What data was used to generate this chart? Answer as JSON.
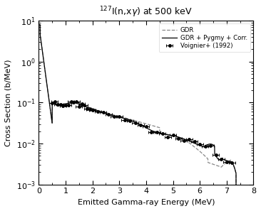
{
  "title": "$^{127}$I(n,x$\\gamma$) at 500 keV",
  "xlabel": "Emitted Gamma-ray Energy (MeV)",
  "ylabel": "Cross Section (b/MeV)",
  "xlim": [
    0,
    8
  ],
  "ylim": [
    0.001,
    10
  ],
  "legend_labels": [
    "GDR + Pygmy + Corr.",
    "GDR",
    "Voignier+ (1992)"
  ],
  "legend_loc": "upper right",
  "line1_color": "black",
  "line2_color": "gray",
  "marker_color": "black",
  "background_color": "white",
  "title_fontsize": 9,
  "label_fontsize": 8,
  "tick_fontsize": 8
}
